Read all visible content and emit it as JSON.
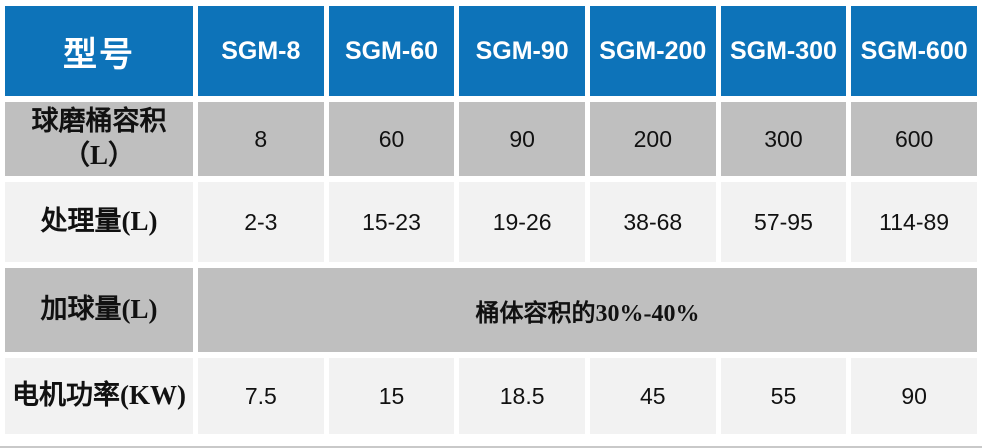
{
  "table": {
    "title": "型号",
    "header": {
      "model_label": "型号",
      "models": [
        "SGM-8",
        "SGM-60",
        "SGM-90",
        "SGM-200",
        "SGM-300",
        "SGM-600"
      ]
    },
    "rows": [
      {
        "label": "球磨桶容积\n（L）",
        "values": [
          "8",
          "60",
          "90",
          "200",
          "300",
          "600"
        ]
      },
      {
        "label": "处理量(L)",
        "values": [
          "2-3",
          "15-23",
          "19-26",
          "38-68",
          "57-95",
          "114-89"
        ]
      },
      {
        "label": "加球量(L)",
        "merged_value": "桶体容积的30%-40%"
      },
      {
        "label": "电机功率(KW)",
        "values": [
          "7.5",
          "15",
          "18.5",
          "45",
          "55",
          "90"
        ]
      }
    ]
  },
  "colors": {
    "header_bg": "#0d73b9",
    "header_text": "#ffffff",
    "gray_bg": "#bfbfbf",
    "light_bg": "#f2f2f2",
    "cell_text": "#111111",
    "rule": "#c9c9c9"
  }
}
